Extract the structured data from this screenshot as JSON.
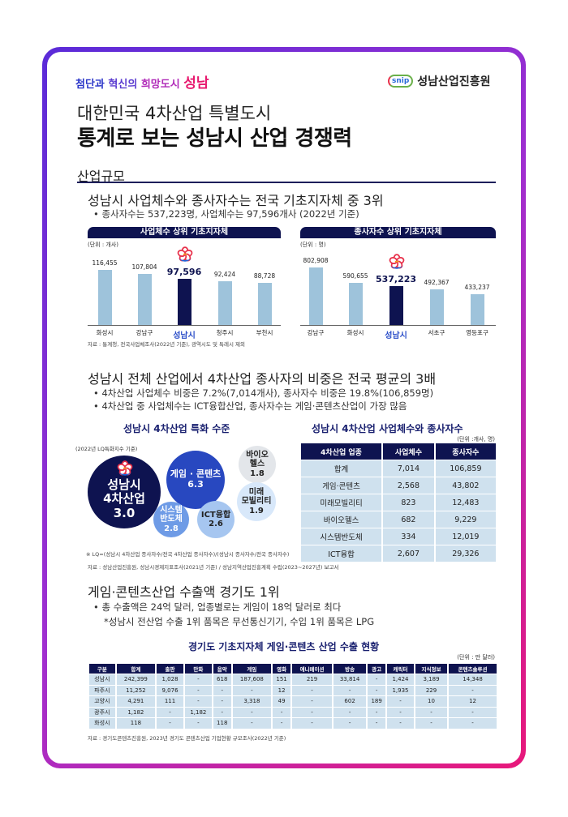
{
  "header": {
    "tagline_parts": [
      "첨단과 ",
      "혁신의 ",
      "희망도시 ",
      "성남"
    ],
    "org_logo_text": "snip",
    "org_name": "성남산업진흥원",
    "title_line1": "대한민국 4차산업 특별도시",
    "title_line2": "통계로 보는 성남시 산업 경쟁력"
  },
  "section": {
    "label": "산업규모"
  },
  "block1": {
    "heading": "성남시 사업체수와 종사자수는 전국 기초지자체 중 3위",
    "bullet": "• 종사자수는 537,223명, 사업체수는 97,596개사 (2022년 기준)",
    "source": "자료 : 통계청, 전국사업체조사(2022년 기준), 광역시도 및 특례시 제외"
  },
  "chart_data": [
    {
      "type": "bar",
      "title": "사업체수 상위 기초지자체",
      "unit": "(단위 : 개사)",
      "categories": [
        "화성시",
        "강남구",
        "성남시",
        "청주시",
        "부천시"
      ],
      "values": [
        116455,
        107804,
        97596,
        92424,
        88728
      ],
      "labels": [
        "116,455",
        "107,804",
        "97,596",
        "92,424",
        "88,728"
      ],
      "highlight": "성남시",
      "colors": {
        "bar": "#9ec3db",
        "highlight": "#0e1350"
      }
    },
    {
      "type": "bar",
      "title": "종사자수 상위 기초지자체",
      "unit": "(단위 : 명)",
      "categories": [
        "강남구",
        "화성시",
        "성남시",
        "서초구",
        "영등포구"
      ],
      "values": [
        802908,
        590655,
        537223,
        492367,
        433237
      ],
      "labels": [
        "802,908",
        "590,655",
        "537,223",
        "492,367",
        "433,237"
      ],
      "highlight": "성남시",
      "colors": {
        "bar": "#9ec3db",
        "highlight": "#0e1350"
      }
    }
  ],
  "block2": {
    "heading": "성남시 전체 산업에서 4차산업 종사자의 비중은 전국 평균의 3배",
    "bullets": [
      "• 4차산업 사업체수 비중은 7.2%(7,014개사), 종사자수 비중은 19.8%(106,859명)",
      "• 4차산업 중 사업체수는 ICT융합산업, 종사자수는 게임·콘텐츠산업이 가장 많음"
    ],
    "bubble_title": "성남시 4차산업 특화 수준",
    "bubble_note": "(2022년 LQ특화지수 기준)",
    "bubbles": [
      {
        "lines": [
          "성남시",
          "4차산업",
          "3.0"
        ],
        "value": 3.0,
        "color": "#0e1350"
      },
      {
        "lines": [
          "게임 · 콘텐츠",
          "6.3"
        ],
        "value": 6.3,
        "color": "#2848c0"
      },
      {
        "lines": [
          "시스템",
          "반도체",
          "2.8"
        ],
        "value": 2.8,
        "color": "#6e9be6"
      },
      {
        "lines": [
          "ICT융합",
          "2.6"
        ],
        "value": 2.6,
        "color": "#a6c6f0"
      },
      {
        "lines": [
          "바이오",
          "헬스",
          "1.8"
        ],
        "value": 1.8,
        "color": "#e3e6ea"
      },
      {
        "lines": [
          "미래",
          "모빌리티",
          "1.9"
        ],
        "value": 1.9,
        "color": "#d8e8fa"
      }
    ],
    "lq_footnote": "※ LQ=(성남시 4차산업 종사자수/전국 4차산업 종사자수)/(성남시 종사자수/전국 종사자수)",
    "source": "자료 : 성남산업진흥원, 성남시경제지표조사(2021년 기준) / 성남지역산업진흥계획 수립(2023~2027년) 보고서",
    "table_title": "성남시 4차산업 사업체수와 종사자수",
    "table_unit": "(단위 :개사, 명)",
    "table": {
      "headers": [
        "4차산업 업종",
        "사업체수",
        "종사자수"
      ],
      "rows": [
        [
          "합계",
          "7,014",
          "106,859"
        ],
        [
          "게임·콘텐츠",
          "2,568",
          "43,802"
        ],
        [
          "미래모빌리티",
          "823",
          "12,483"
        ],
        [
          "바이오헬스",
          "682",
          "9,229"
        ],
        [
          "시스템반도체",
          "334",
          "12,019"
        ],
        [
          "ICT융합",
          "2,607",
          "29,326"
        ]
      ]
    }
  },
  "block3": {
    "heading": "게임·콘텐츠산업 수출액 경기도 1위",
    "bullet": "• 총 수출액은 24억 달러, 업종별로는 게임이 18억 달러로 최다",
    "note": "*성남시 전산업 수출 1위 품목은 무선통신기기, 수입 1위 품목은 LPG",
    "table_title": "경기도 기초지자체 게임·콘텐츠 산업 수출 현황",
    "table_unit": "(단위 : 만 달러)",
    "table": {
      "headers": [
        "구분",
        "합계",
        "출판",
        "만화",
        "음악",
        "게임",
        "영화",
        "애니메이션",
        "방송",
        "광고",
        "캐릭터",
        "지식정보",
        "콘텐츠솔루션"
      ],
      "rows": [
        [
          "성남시",
          "242,399",
          "1,028",
          "-",
          "618",
          "187,608",
          "151",
          "219",
          "33,814",
          "-",
          "1,424",
          "3,189",
          "14,348"
        ],
        [
          "파주시",
          "11,252",
          "9,076",
          "-",
          "-",
          "-",
          "12",
          "-",
          "-",
          "-",
          "1,935",
          "229",
          "-"
        ],
        [
          "고양시",
          "4,291",
          "111",
          "-",
          "-",
          "3,318",
          "49",
          "-",
          "602",
          "189",
          "-",
          "10",
          "12"
        ],
        [
          "광주시",
          "1,182",
          "-",
          "1,182",
          "-",
          "-",
          "-",
          "-",
          "-",
          "-",
          "-",
          "-",
          "-"
        ],
        [
          "화성시",
          "118",
          "-",
          "-",
          "118",
          "-",
          "-",
          "-",
          "-",
          "-",
          "-",
          "-",
          "-"
        ]
      ]
    },
    "source": "자료 : 경기도콘텐츠진흥원, 2023년 경기도 콘텐츠산업 기업현황 규모조사(2022년 기준)"
  }
}
